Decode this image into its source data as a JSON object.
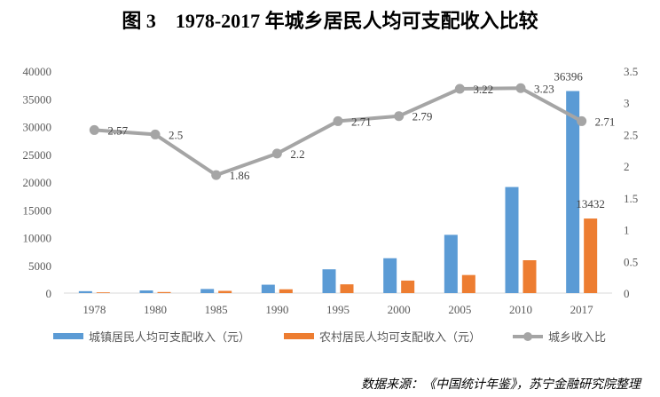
{
  "chart_data": {
    "type": "bar",
    "title": "图 3　1978-2017 年城乡居民人均可支配收入比较",
    "categories": [
      "1978",
      "1980",
      "1985",
      "1990",
      "1995",
      "2000",
      "2005",
      "2010",
      "2017"
    ],
    "series": [
      {
        "name": "城镇居民人均可支配收入（元）",
        "type": "bar",
        "axis": "left",
        "color": "#5B9BD5",
        "values": [
          343,
          478,
          739,
          1510,
          4283,
          6280,
          10493,
          19109,
          36396
        ],
        "data_labels": {
          "2017": "36396"
        }
      },
      {
        "name": "农村居民人均可支配收入（元）",
        "type": "bar",
        "axis": "left",
        "color": "#ED7D31",
        "values": [
          134,
          191,
          398,
          686,
          1578,
          2253,
          3255,
          5919,
          13432
        ],
        "data_labels": {
          "2017": "13432"
        }
      },
      {
        "name": "城乡收入比",
        "type": "line",
        "axis": "right",
        "color": "#A5A5A5",
        "values": [
          2.57,
          2.5,
          1.86,
          2.2,
          2.71,
          2.79,
          3.22,
          3.23,
          2.71
        ],
        "labels": [
          "2.57",
          "2.5",
          "1.86",
          "2.2",
          "2.71",
          "2.79",
          "3.22",
          "3.23",
          "2.71"
        ]
      }
    ],
    "y_left": {
      "ylim": [
        0,
        40000
      ],
      "ticks": [
        "0",
        "5000",
        "10000",
        "15000",
        "20000",
        "25000",
        "30000",
        "35000",
        "40000"
      ]
    },
    "y_right": {
      "ylim": [
        0,
        3.5
      ],
      "ticks": [
        "0",
        "0.5",
        "1",
        "1.5",
        "2",
        "2.5",
        "3",
        "3.5"
      ]
    },
    "grid": false,
    "legend": "bottom"
  },
  "source": "数据来源：《中国统计年鉴》，苏宁金融研究院整理"
}
